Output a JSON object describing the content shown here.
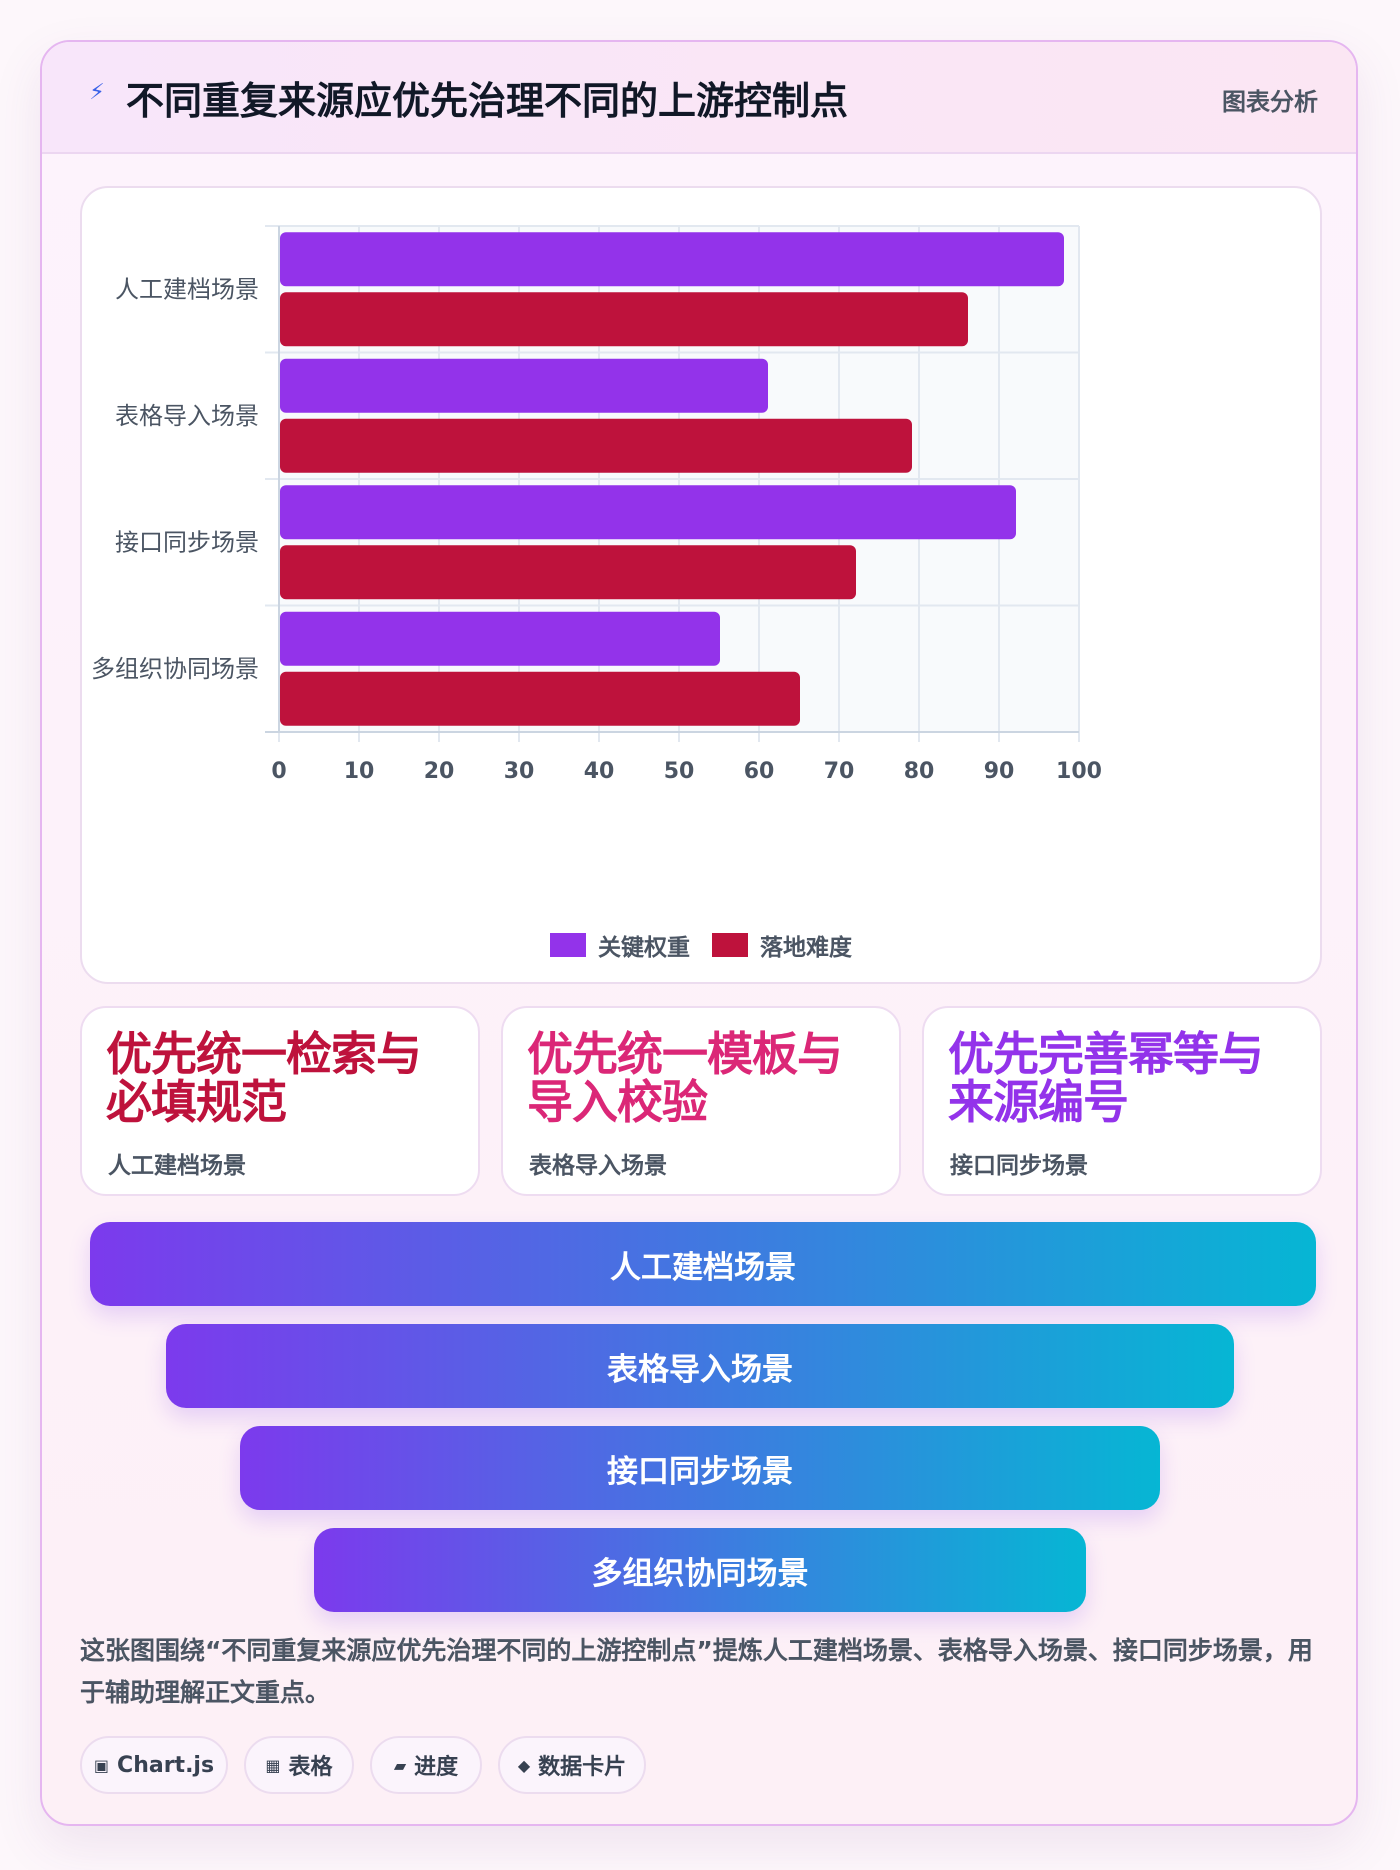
{
  "header": {
    "title": "不同重复来源应优先治理不同的上游控制点",
    "tag": "图表分析"
  },
  "chart_data": {
    "type": "bar",
    "orientation": "horizontal",
    "categories": [
      "人工建档场景",
      "表格导入场景",
      "接口同步场景",
      "多组织协同场景"
    ],
    "series": [
      {
        "name": "关键权重",
        "values": [
          98,
          61,
          92,
          55
        ],
        "color": "#9333ea"
      },
      {
        "name": "落地难度",
        "values": [
          86,
          79,
          72,
          65
        ],
        "color": "#be123c"
      }
    ],
    "xlim": [
      0,
      100
    ],
    "xticks": [
      0,
      10,
      20,
      30,
      40,
      50,
      60,
      70,
      80,
      90,
      100
    ],
    "grid": true,
    "legend": "bottom"
  },
  "cards": [
    {
      "title": "优先统一检索与必填规范",
      "sub": "人工建档场景",
      "color": "#be123c"
    },
    {
      "title": "优先统一模板与导入校验",
      "sub": "表格导入场景",
      "color": "#db2777"
    },
    {
      "title": "优先完善幂等与来源编号",
      "sub": "接口同步场景",
      "color": "#9333ea"
    }
  ],
  "funnel": [
    "人工建档场景",
    "表格导入场景",
    "接口同步场景",
    "多组织协同场景"
  ],
  "description": "这张图围绕“不同重复来源应优先治理不同的上游控制点”提炼人工建档场景、表格导入场景、接口同步场景，用于辅助理解正文重点。",
  "chips": [
    {
      "icon": "▣",
      "label": "Chart.js"
    },
    {
      "icon": "▦",
      "label": "表格"
    },
    {
      "icon": "▰",
      "label": "进度"
    },
    {
      "icon": "◆",
      "label": "数据卡片"
    }
  ]
}
